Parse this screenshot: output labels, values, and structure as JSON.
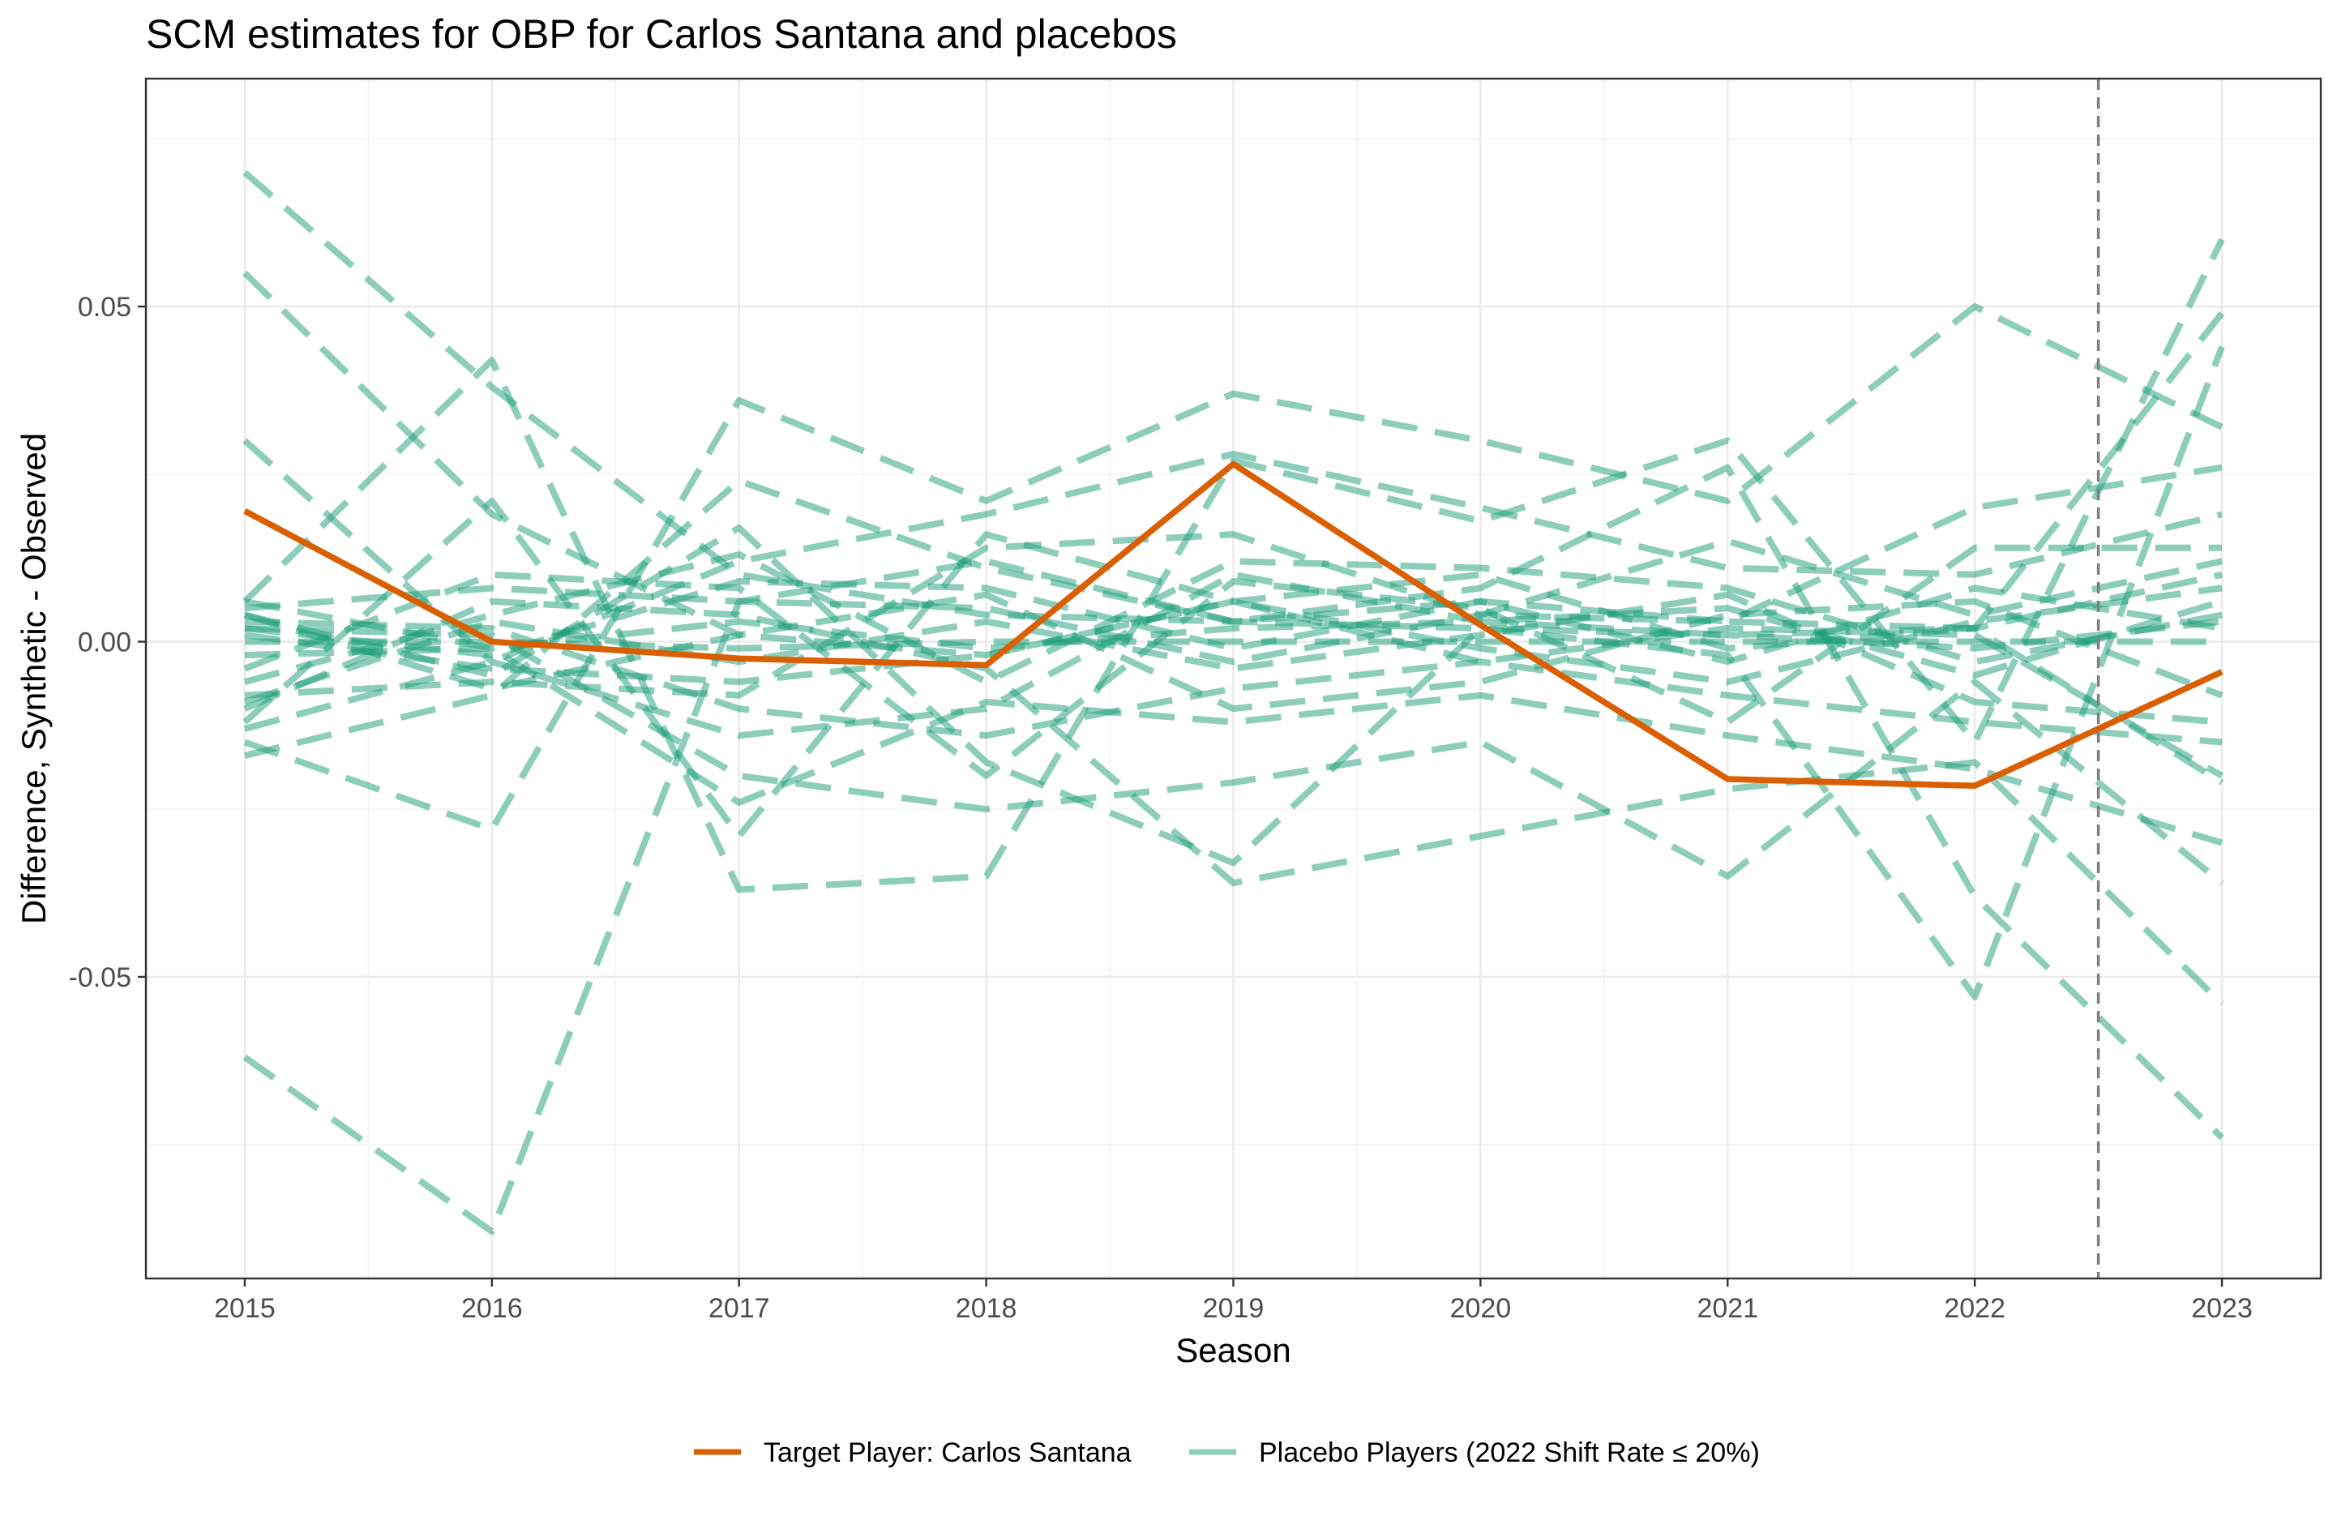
{
  "chart_data": {
    "type": "line",
    "title": "SCM estimates for OBP for Carlos Santana and placebos",
    "xlabel": "Season",
    "ylabel": "Difference, Synthetic - Observed",
    "x": [
      2015,
      2016,
      2017,
      2018,
      2019,
      2020,
      2021,
      2022,
      2023
    ],
    "xlim": [
      2014.6,
      2023.4
    ],
    "ylim": [
      -0.095,
      0.084
    ],
    "yticks": [
      -0.05,
      0.0,
      0.05
    ],
    "ytick_labels": [
      "-0.05",
      "0.00",
      "0.05"
    ],
    "xtick_labels": [
      "2015",
      "2016",
      "2017",
      "2018",
      "2019",
      "2020",
      "2021",
      "2022",
      "2023"
    ],
    "treatment_line_x": 2022.5,
    "colors": {
      "target": "#d95f02",
      "placebo": "#1b9e77",
      "vline": "#7f7f7f"
    },
    "target_series": {
      "name": "Target Player: Carlos Santana",
      "values": [
        0.0195,
        0.0,
        -0.0025,
        -0.0035,
        0.0265,
        0.0025,
        -0.0205,
        -0.0215,
        -0.0045
      ]
    },
    "placebo_series": [
      {
        "name": "Placebo 1",
        "values": [
          0.07,
          0.038,
          0.01,
          0.004,
          0.003,
          0.002,
          0.001,
          -0.001,
          0.003
        ]
      },
      {
        "name": "Placebo 2",
        "values": [
          0.055,
          0.019,
          0.001,
          -0.002,
          0.006,
          -0.003,
          0.002,
          0.001,
          -0.02
        ]
      },
      {
        "name": "Placebo 3",
        "values": [
          0.03,
          -0.003,
          -0.014,
          -0.01,
          0.01,
          0.003,
          0.005,
          -0.005,
          0.006
        ]
      },
      {
        "name": "Placebo 4",
        "values": [
          -0.062,
          -0.088,
          0.006,
          0.005,
          -0.003,
          0.004,
          0.003,
          0.002,
          -0.021
        ]
      },
      {
        "name": "Placebo 5",
        "values": [
          -0.015,
          -0.028,
          0.036,
          0.021,
          0.037,
          0.03,
          0.021,
          0.05,
          0.032
        ]
      },
      {
        "name": "Placebo 6",
        "values": [
          0.006,
          0.042,
          -0.037,
          -0.035,
          0.027,
          0.018,
          0.03,
          -0.015,
          0.06
        ]
      },
      {
        "name": "Placebo 7",
        "values": [
          -0.012,
          0.021,
          -0.029,
          0.016,
          0.006,
          0.01,
          -0.001,
          0.002,
          0.049
        ]
      },
      {
        "name": "Placebo 8",
        "values": [
          0.004,
          -0.005,
          0.017,
          -0.018,
          -0.033,
          0.002,
          -0.002,
          -0.053,
          0.044
        ]
      },
      {
        "name": "Placebo 9",
        "values": [
          -0.017,
          -0.008,
          0.024,
          0.011,
          0.003,
          0.006,
          0.003,
          0.02,
          0.026
        ]
      },
      {
        "name": "Placebo 10",
        "values": [
          -0.01,
          0.006,
          0.004,
          -0.004,
          -0.036,
          -0.029,
          -0.022,
          -0.018,
          -0.054
        ]
      },
      {
        "name": "Placebo 11",
        "values": [
          0.005,
          0.008,
          0.006,
          0.012,
          0.003,
          0.008,
          0.026,
          -0.038,
          -0.074
        ]
      },
      {
        "name": "Placebo 12",
        "values": [
          0.002,
          0.001,
          -0.02,
          -0.025,
          -0.021,
          -0.015,
          -0.035,
          -0.006,
          -0.036
        ]
      },
      {
        "name": "Placebo 13",
        "values": [
          -0.013,
          -0.003,
          0.012,
          0.019,
          0.028,
          0.02,
          0.011,
          0.01,
          0.019
        ]
      },
      {
        "name": "Placebo 14",
        "values": [
          -0.008,
          -0.006,
          -0.008,
          0.014,
          0.016,
          0.004,
          0.015,
          0.004,
          0.012
        ]
      },
      {
        "name": "Placebo 15",
        "values": [
          0.006,
          -0.001,
          -0.024,
          -0.009,
          -0.012,
          -0.008,
          -0.014,
          -0.019,
          -0.03
        ]
      },
      {
        "name": "Placebo 16",
        "values": [
          0.0,
          0.0,
          -0.001,
          0.0,
          0.0,
          0.0,
          0.0,
          0.0,
          0.0
        ]
      },
      {
        "name": "Placebo 17",
        "values": [
          -0.002,
          -0.001,
          0.003,
          -0.001,
          0.002,
          0.003,
          0.001,
          0.002,
          0.01
        ]
      },
      {
        "name": "Placebo 18",
        "values": [
          0.001,
          -0.004,
          -0.006,
          -0.002,
          0.006,
          -0.001,
          -0.006,
          0.003,
          0.008
        ]
      },
      {
        "name": "Placebo 19",
        "values": [
          0.003,
          0.002,
          -0.01,
          -0.014,
          -0.007,
          -0.003,
          -0.008,
          -0.012,
          -0.015
        ]
      },
      {
        "name": "Placebo 20",
        "values": [
          -0.006,
          0.004,
          0.013,
          -0.006,
          0.012,
          0.011,
          0.008,
          -0.003,
          0.004
        ]
      },
      {
        "name": "Placebo 21",
        "values": [
          0.004,
          -0.007,
          0.001,
          0.007,
          -0.01,
          -0.006,
          0.004,
          0.006,
          -0.008
        ]
      },
      {
        "name": "Placebo 22",
        "values": [
          -0.004,
          0.01,
          0.008,
          -0.02,
          0.009,
          0.005,
          -0.012,
          0.014,
          0.014
        ]
      },
      {
        "name": "Placebo 23",
        "values": [
          -0.009,
          0.003,
          -0.003,
          0.003,
          -0.004,
          0.001,
          0.007,
          -0.009,
          -0.012
        ]
      },
      {
        "name": "Placebo 24",
        "values": [
          0.002,
          -0.002,
          0.009,
          0.008,
          -0.001,
          0.006,
          -0.003,
          0.008,
          0.002
        ]
      }
    ],
    "legend": {
      "position": "bottom",
      "entries": [
        "Target Player: Carlos Santana",
        "Placebo Players (2022 Shift Rate ≤ 20%)"
      ]
    }
  }
}
